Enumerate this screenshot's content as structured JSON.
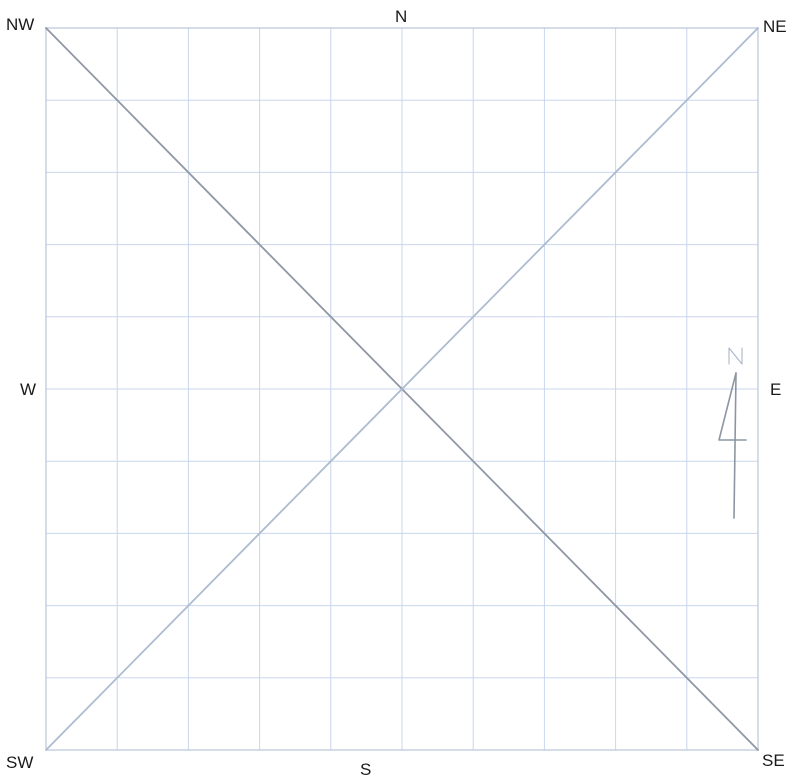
{
  "labels": {
    "nw": "NW",
    "n": "N",
    "ne": "NE",
    "w": "W",
    "e": "E",
    "sw": "SW",
    "s": "S",
    "se": "SE"
  },
  "grid": {
    "columns": 10,
    "rows": 10
  },
  "colors": {
    "grid": "#c8d6ec",
    "frame": "#b9c6da",
    "nw_se_diagonal": "#8f98a4",
    "sw_ne_diagonal": "#aebcd0",
    "label": "#1a1a1a",
    "north_arrow": "#8c96a3"
  },
  "north_arrow": {
    "icon": "north-arrow-icon",
    "letter": "N"
  }
}
